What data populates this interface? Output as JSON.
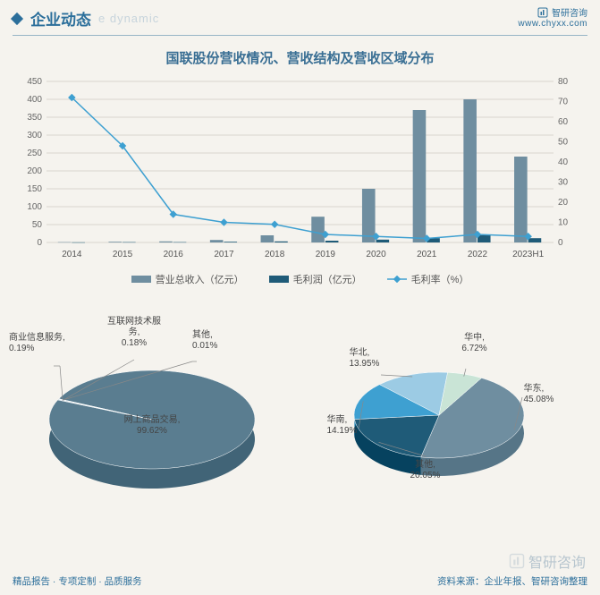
{
  "header": {
    "title_cn": "企业动态",
    "title_en": "e dynamic",
    "brand_name": "智研咨询",
    "brand_url": "www.chyxx.com"
  },
  "chart": {
    "title": "国联股份营收情况、营收结构及营收区域分布",
    "type": "combo_bar_line",
    "categories": [
      "2014",
      "2015",
      "2016",
      "2017",
      "2018",
      "2019",
      "2020",
      "2021",
      "2022",
      "2023H1"
    ],
    "left_axis": {
      "min": 0,
      "max": 450,
      "step": 50,
      "label": ""
    },
    "right_axis": {
      "min": 0,
      "max": 80,
      "step": 10,
      "label": ""
    },
    "series": [
      {
        "name": "营业总收入（亿元）",
        "type": "bar",
        "color": "#6f8ea0",
        "data": [
          1,
          2,
          3,
          7,
          20,
          72,
          150,
          370,
          400,
          240
        ]
      },
      {
        "name": "毛利润（亿元）",
        "type": "bar",
        "color": "#1f5b78",
        "data": [
          0.5,
          1,
          1,
          2,
          3,
          5,
          8,
          12,
          20,
          12
        ]
      },
      {
        "name": "毛利率（%）",
        "type": "line",
        "color": "#3ea0d1",
        "axis": "right",
        "data": [
          72,
          48,
          14,
          10,
          9,
          4,
          3,
          2,
          4,
          3
        ]
      }
    ],
    "font_size_axis": 10,
    "grid_color": "#d9d6cf",
    "background": "#f5f3ee"
  },
  "pie_left": {
    "type": "pie_3d",
    "title": "",
    "slices": [
      {
        "label": "网上商品交易",
        "value": 99.62,
        "color": "#5a7d90"
      },
      {
        "label": "商业信息服务",
        "value": 0.19,
        "color": "#9db6c4"
      },
      {
        "label": "互联网技术服务",
        "value": 0.18,
        "color": "#7ea0b2"
      },
      {
        "label": "其他",
        "value": 0.01,
        "color": "#c4d3db"
      }
    ],
    "label_fontsize": 10
  },
  "pie_right": {
    "type": "pie_3d",
    "title": "",
    "slices": [
      {
        "label": "华东",
        "value": 45.08,
        "color": "#6f8ea0"
      },
      {
        "label": "其他",
        "value": 20.05,
        "color": "#1f5b78"
      },
      {
        "label": "华南",
        "value": 14.19,
        "color": "#3ea0d1"
      },
      {
        "label": "华北",
        "value": 13.95,
        "color": "#9ccbe4"
      },
      {
        "label": "华中",
        "value": 6.72,
        "color": "#c9e4d6"
      }
    ],
    "label_fontsize": 10
  },
  "footer": {
    "left": "精品报告 · 专项定制 · 品质服务",
    "right": "资料来源：企业年报、智研咨询整理"
  },
  "watermark": "智研咨询"
}
